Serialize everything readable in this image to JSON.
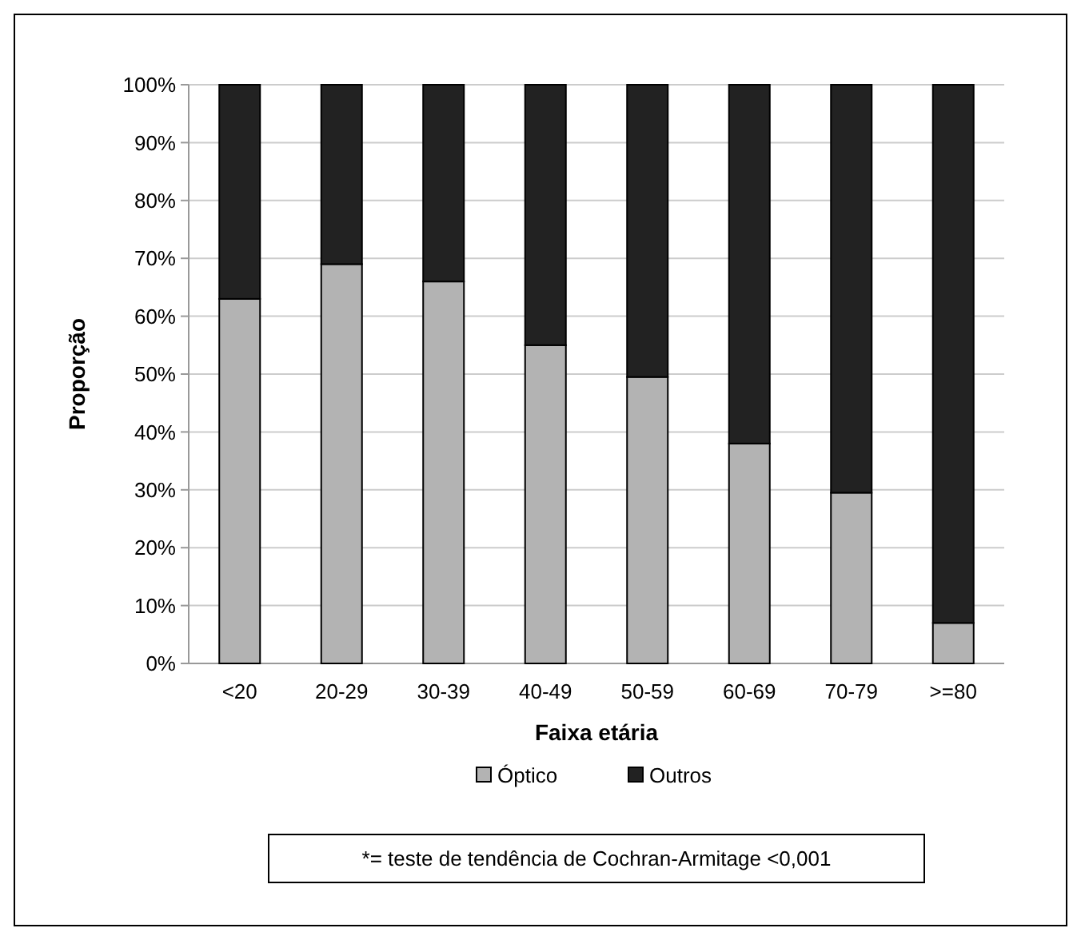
{
  "chart_data": {
    "type": "bar",
    "stacked": true,
    "xlabel": "Faixa etária",
    "ylabel": "Proporção",
    "categories": [
      "<20",
      "20-29",
      "30-39",
      "40-49",
      "50-59",
      "60-69",
      "70-79",
      ">=80"
    ],
    "series": [
      {
        "name": "Óptico",
        "color": "#b3b3b3",
        "values": [
          63,
          69,
          66,
          55,
          49.5,
          38,
          29.5,
          7
        ]
      },
      {
        "name": "Outros",
        "color": "#222222",
        "values": [
          37,
          31,
          34,
          45,
          50.5,
          62,
          70.5,
          93
        ]
      }
    ],
    "ylim": [
      0,
      100
    ],
    "yticks": [
      {
        "value": 0,
        "label": "0%"
      },
      {
        "value": 10,
        "label": "10%"
      },
      {
        "value": 20,
        "label": "20%"
      },
      {
        "value": 30,
        "label": "30%"
      },
      {
        "value": 40,
        "label": "40%"
      },
      {
        "value": 50,
        "label": "50%"
      },
      {
        "value": 60,
        "label": "60%"
      },
      {
        "value": 70,
        "label": "70%"
      },
      {
        "value": 80,
        "label": "80%"
      },
      {
        "value": 90,
        "label": "90%"
      },
      {
        "value": 100,
        "label": "100%"
      }
    ],
    "grid": "y",
    "legend": "bottom",
    "annotations": [
      "*= teste de tendência de Cochran-Armitage <0,001"
    ]
  }
}
